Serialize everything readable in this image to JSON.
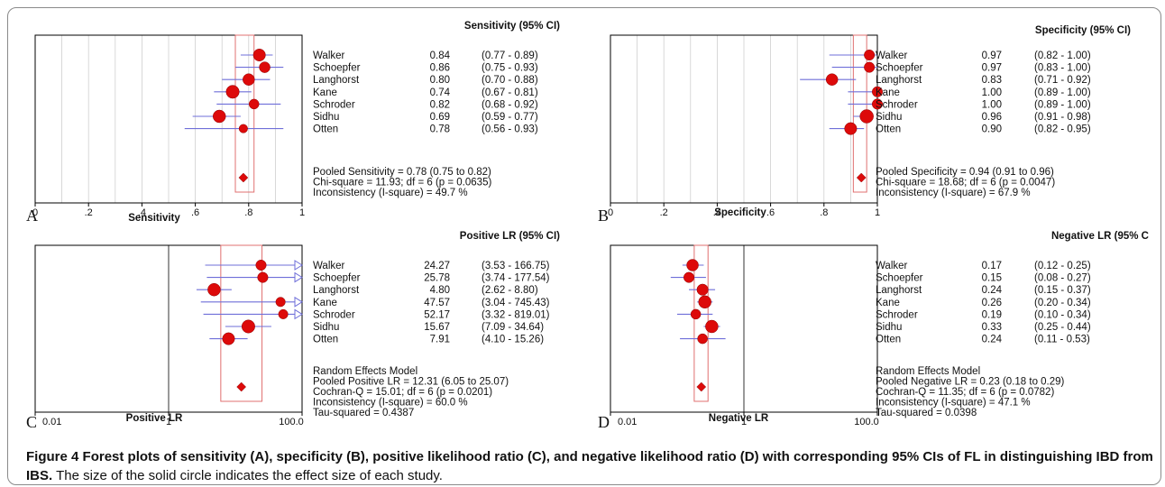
{
  "chart_data": [
    {
      "id": "A",
      "type": "forest",
      "panel_letter": "A",
      "title": "Sensitivity (95% CI)",
      "xlabel": "Sensitivity",
      "scale": "linear",
      "xlim": [
        0,
        1
      ],
      "ticks": [
        "0",
        ".2",
        ".4",
        ".6",
        ".8",
        "1"
      ],
      "tick_values": [
        0,
        0.2,
        0.4,
        0.6,
        0.8,
        1
      ],
      "grid": "vertical",
      "studies": [
        {
          "name": "Walker",
          "est": 0.84,
          "lo": 0.77,
          "hi": 0.89,
          "text": "0.84",
          "ci_text": "(0.77 - 0.89)",
          "weight": 0.75
        },
        {
          "name": "Schoepfer",
          "est": 0.86,
          "lo": 0.75,
          "hi": 0.93,
          "text": "0.86",
          "ci_text": "(0.75 - 0.93)",
          "weight": 0.6
        },
        {
          "name": "Langhorst",
          "est": 0.8,
          "lo": 0.7,
          "hi": 0.88,
          "text": "0.80",
          "ci_text": "(0.70 - 0.88)",
          "weight": 0.7
        },
        {
          "name": "Kane",
          "est": 0.74,
          "lo": 0.67,
          "hi": 0.81,
          "text": "0.74",
          "ci_text": "(0.67 - 0.81)",
          "weight": 0.85
        },
        {
          "name": "Schroder",
          "est": 0.82,
          "lo": 0.68,
          "hi": 0.92,
          "text": "0.82",
          "ci_text": "(0.68 - 0.92)",
          "weight": 0.5
        },
        {
          "name": "Sidhu",
          "est": 0.69,
          "lo": 0.59,
          "hi": 0.77,
          "text": "0.69",
          "ci_text": "(0.59 - 0.77)",
          "weight": 0.8
        },
        {
          "name": "Otten",
          "est": 0.78,
          "lo": 0.56,
          "hi": 0.93,
          "text": "0.78",
          "ci_text": "(0.56 - 0.93)",
          "weight": 0.35
        }
      ],
      "pooled": {
        "est": 0.78,
        "lo": 0.75,
        "hi": 0.82
      },
      "summary_lines": [
        "Pooled Sensitivity = 0.78 (0.75 to 0.82)",
        "Chi-square = 11.93; df =  6 (p = 0.0635)",
        "Inconsistency (I-square) = 49.7 %"
      ]
    },
    {
      "id": "B",
      "type": "forest",
      "panel_letter": "B",
      "title": "Specificity (95% CI)",
      "xlabel": "Specificity",
      "scale": "linear",
      "xlim": [
        0,
        1
      ],
      "ticks": [
        "0",
        ".2",
        ".4",
        ".6",
        ".8",
        "1"
      ],
      "tick_values": [
        0,
        0.2,
        0.4,
        0.6,
        0.8,
        1
      ],
      "grid": "vertical",
      "studies": [
        {
          "name": "Walker",
          "est": 0.97,
          "lo": 0.82,
          "hi": 1.0,
          "text": "0.97",
          "ci_text": "(0.82 - 1.00)",
          "weight": 0.55
        },
        {
          "name": "Schoepfer",
          "est": 0.97,
          "lo": 0.83,
          "hi": 1.0,
          "text": "0.97",
          "ci_text": "(0.83 - 1.00)",
          "weight": 0.55
        },
        {
          "name": "Langhorst",
          "est": 0.83,
          "lo": 0.71,
          "hi": 0.92,
          "text": "0.83",
          "ci_text": "(0.71 - 0.92)",
          "weight": 0.7
        },
        {
          "name": "Kane",
          "est": 1.0,
          "lo": 0.89,
          "hi": 1.0,
          "text": "1.00",
          "ci_text": "(0.89 - 1.00)",
          "weight": 0.55
        },
        {
          "name": "Schroder",
          "est": 1.0,
          "lo": 0.89,
          "hi": 1.0,
          "text": "1.00",
          "ci_text": "(0.89 - 1.00)",
          "weight": 0.55
        },
        {
          "name": "Sidhu",
          "est": 0.96,
          "lo": 0.91,
          "hi": 0.98,
          "text": "0.96",
          "ci_text": "(0.91 - 0.98)",
          "weight": 0.9
        },
        {
          "name": "Otten",
          "est": 0.9,
          "lo": 0.82,
          "hi": 0.95,
          "text": "0.90",
          "ci_text": "(0.82 - 0.95)",
          "weight": 0.75
        }
      ],
      "pooled": {
        "est": 0.94,
        "lo": 0.91,
        "hi": 0.96
      },
      "summary_lines": [
        "Pooled Specificity = 0.94 (0.91 to 0.96)",
        "Chi-square = 18.68; df =  6 (p = 0.0047)",
        "Inconsistency (I-square) = 67.9 %"
      ]
    },
    {
      "id": "C",
      "type": "forest",
      "panel_letter": "C",
      "title": "Positive LR (95% CI)",
      "xlabel": "Positive LR",
      "scale": "log",
      "xlim": [
        0.01,
        100
      ],
      "ticks": [
        "0.01",
        "1",
        "100.0"
      ],
      "tick_values": [
        0.01,
        1,
        100
      ],
      "grid": "reference-line",
      "studies": [
        {
          "name": "Walker",
          "est": 24.27,
          "lo": 3.53,
          "hi": 166.75,
          "text": "24.27",
          "ci_text": "(3.53 - 166.75)",
          "weight": 0.55
        },
        {
          "name": "Schoepfer",
          "est": 25.78,
          "lo": 3.74,
          "hi": 177.54,
          "text": "25.78",
          "ci_text": "(3.74 - 177.54)",
          "weight": 0.55
        },
        {
          "name": "Langhorst",
          "est": 4.8,
          "lo": 2.62,
          "hi": 8.8,
          "text": "4.80",
          "ci_text": "(2.62 - 8.80)",
          "weight": 0.8
        },
        {
          "name": "Kane",
          "est": 47.57,
          "lo": 3.04,
          "hi": 745.43,
          "text": "47.57",
          "ci_text": "(3.04 - 745.43)",
          "weight": 0.45
        },
        {
          "name": "Schroder",
          "est": 52.17,
          "lo": 3.32,
          "hi": 819.01,
          "text": "52.17",
          "ci_text": "(3.32 - 819.01)",
          "weight": 0.45
        },
        {
          "name": "Sidhu",
          "est": 15.67,
          "lo": 7.09,
          "hi": 34.64,
          "text": "15.67",
          "ci_text": "(7.09 - 34.64)",
          "weight": 0.85
        },
        {
          "name": "Otten",
          "est": 7.91,
          "lo": 4.1,
          "hi": 15.26,
          "text": "7.91",
          "ci_text": "(4.10 - 15.26)",
          "weight": 0.75
        }
      ],
      "pooled": {
        "est": 12.31,
        "lo": 6.05,
        "hi": 25.07
      },
      "summary_lines": [
        "Random Effects Model",
        "Pooled Positive LR = 12.31 (6.05 to 25.07)",
        "Cochran-Q = 15.01; df =  6 (p = 0.0201)",
        "Inconsistency (I-square) = 60.0 %",
        "Tau-squared = 0.4387"
      ]
    },
    {
      "id": "D",
      "type": "forest",
      "panel_letter": "D",
      "title": "Negative LR (95% C",
      "xlabel": "Negative LR",
      "scale": "log",
      "xlim": [
        0.01,
        100
      ],
      "ticks": [
        "0.01",
        "1",
        "100.0"
      ],
      "tick_values": [
        0.01,
        1,
        100
      ],
      "grid": "reference-line",
      "studies": [
        {
          "name": "Walker",
          "est": 0.17,
          "lo": 0.12,
          "hi": 0.25,
          "text": "0.17",
          "ci_text": "(0.12 - 0.25)",
          "weight": 0.7
        },
        {
          "name": "Schoepfer",
          "est": 0.15,
          "lo": 0.08,
          "hi": 0.27,
          "text": "0.15",
          "ci_text": "(0.08 - 0.27)",
          "weight": 0.55
        },
        {
          "name": "Langhorst",
          "est": 0.24,
          "lo": 0.15,
          "hi": 0.37,
          "text": "0.24",
          "ci_text": "(0.15 - 0.37)",
          "weight": 0.65
        },
        {
          "name": "Kane",
          "est": 0.26,
          "lo": 0.2,
          "hi": 0.34,
          "text": "0.26",
          "ci_text": "(0.20 - 0.34)",
          "weight": 0.8
        },
        {
          "name": "Schroder",
          "est": 0.19,
          "lo": 0.1,
          "hi": 0.34,
          "text": "0.19",
          "ci_text": "(0.10 - 0.34)",
          "weight": 0.5
        },
        {
          "name": "Sidhu",
          "est": 0.33,
          "lo": 0.25,
          "hi": 0.44,
          "text": "0.33",
          "ci_text": "(0.25 - 0.44)",
          "weight": 0.8
        },
        {
          "name": "Otten",
          "est": 0.24,
          "lo": 0.11,
          "hi": 0.53,
          "text": "0.24",
          "ci_text": "(0.11 - 0.53)",
          "weight": 0.5
        }
      ],
      "pooled": {
        "est": 0.23,
        "lo": 0.18,
        "hi": 0.29
      },
      "summary_lines": [
        "Random Effects Model",
        "Pooled Negative LR = 0.23 (0.18 to 0.29)",
        "Cochran-Q = 11.35; df =  6 (p = 0.0782)",
        "Inconsistency (I-square) = 47.1 %",
        "Tau-squared = 0.0398"
      ]
    }
  ],
  "colors": {
    "point": "#dd0a0a",
    "point_edge": "#8a0000",
    "ci_line": "#6f6fd9",
    "pooled_box": "#e07070",
    "grid": "#cfcfcf",
    "axis": "#000000"
  },
  "caption": {
    "label": "Figure 4",
    "bold_text": "Forest plots of sensitivity (A), specificity (B), positive likelihood ratio (C), and negative likelihood ratio (D) with corresponding 95% CIs of FL in distinguishing IBD from IBS.",
    "normal_text": "The size of the solid circle indicates the effect size of each study."
  }
}
